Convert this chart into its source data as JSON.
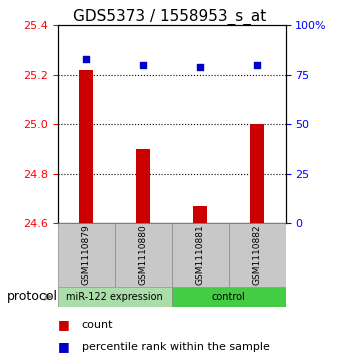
{
  "title": "GDS5373 / 1558953_s_at",
  "samples": [
    "GSM1110879",
    "GSM1110880",
    "GSM1110881",
    "GSM1110882"
  ],
  "bar_values": [
    25.22,
    24.9,
    24.67,
    25.0
  ],
  "dot_values": [
    83,
    80,
    79,
    80
  ],
  "ylim_left": [
    24.6,
    25.4
  ],
  "ylim_right": [
    0,
    100
  ],
  "yticks_left": [
    24.6,
    24.8,
    25.0,
    25.2,
    25.4
  ],
  "yticks_right": [
    0,
    25,
    50,
    75,
    100
  ],
  "bar_color": "#cc0000",
  "dot_color": "#0000cc",
  "bar_bottom": 24.6,
  "group0_label": "miR-122 expression",
  "group1_label": "control",
  "group0_color": "#aaddaa",
  "group1_color": "#44cc44",
  "protocol_label": "protocol",
  "legend_count_label": "count",
  "legend_percentile_label": "percentile rank within the sample",
  "title_fontsize": 11,
  "tick_fontsize": 8,
  "sample_fontsize": 6.5,
  "group_fontsize": 7,
  "legend_fontsize": 8
}
